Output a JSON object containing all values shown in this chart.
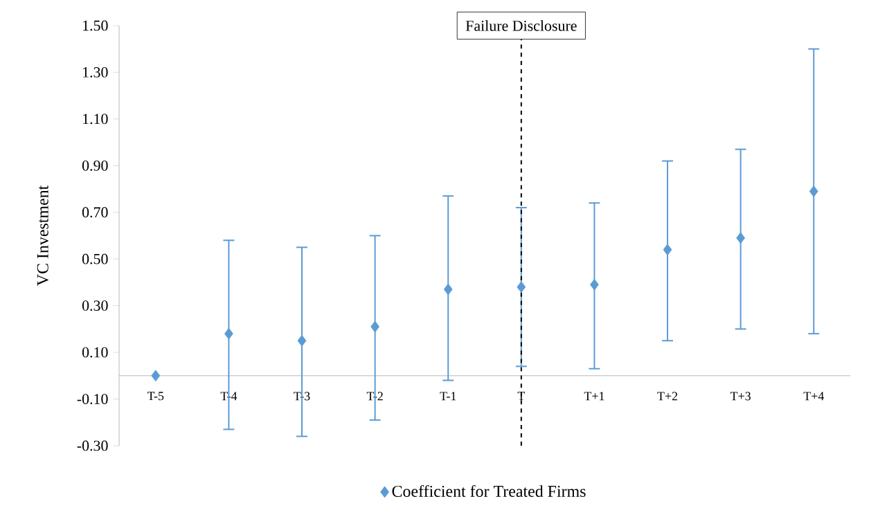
{
  "chart_data": {
    "type": "scatter",
    "ylabel": "VC Investment",
    "categories": [
      "T-5",
      "T-4",
      "T-3",
      "T-2",
      "T-1",
      "T",
      "T+1",
      "T+2",
      "T+3",
      "T+4"
    ],
    "series": [
      {
        "name": "Coefficient for Treated Firms",
        "color": "#5b9bd5",
        "values": [
          0.0,
          0.18,
          0.15,
          0.21,
          0.37,
          0.38,
          0.39,
          0.54,
          0.59,
          0.79
        ],
        "errors": [
          null,
          [
            -0.23,
            0.58
          ],
          [
            -0.26,
            0.55
          ],
          [
            -0.19,
            0.6
          ],
          [
            -0.02,
            0.77
          ],
          [
            0.04,
            0.72
          ],
          [
            0.03,
            0.74
          ],
          [
            0.15,
            0.92
          ],
          [
            0.2,
            0.97
          ],
          [
            0.18,
            1.4
          ]
        ]
      }
    ],
    "ylim": [
      -0.3,
      1.5
    ],
    "yticks": [
      {
        "value": -0.3,
        "label": "-0.30"
      },
      {
        "value": -0.1,
        "label": "-0.10"
      },
      {
        "value": 0.1,
        "label": "0.10"
      },
      {
        "value": 0.3,
        "label": "0.30"
      },
      {
        "value": 0.5,
        "label": "0.50"
      },
      {
        "value": 0.7,
        "label": "0.70"
      },
      {
        "value": 0.9,
        "label": "0.90"
      },
      {
        "value": 1.1,
        "label": "1.10"
      },
      {
        "value": 1.3,
        "label": "1.30"
      },
      {
        "value": 1.5,
        "label": "1.50"
      }
    ],
    "ref_lines": [
      {
        "axis": "x",
        "value": "T",
        "label": "Failure Disclosure",
        "color": "#000000",
        "line_style": "dashed"
      }
    ],
    "marker": "diamond",
    "grid": false,
    "legend": "bottom"
  }
}
